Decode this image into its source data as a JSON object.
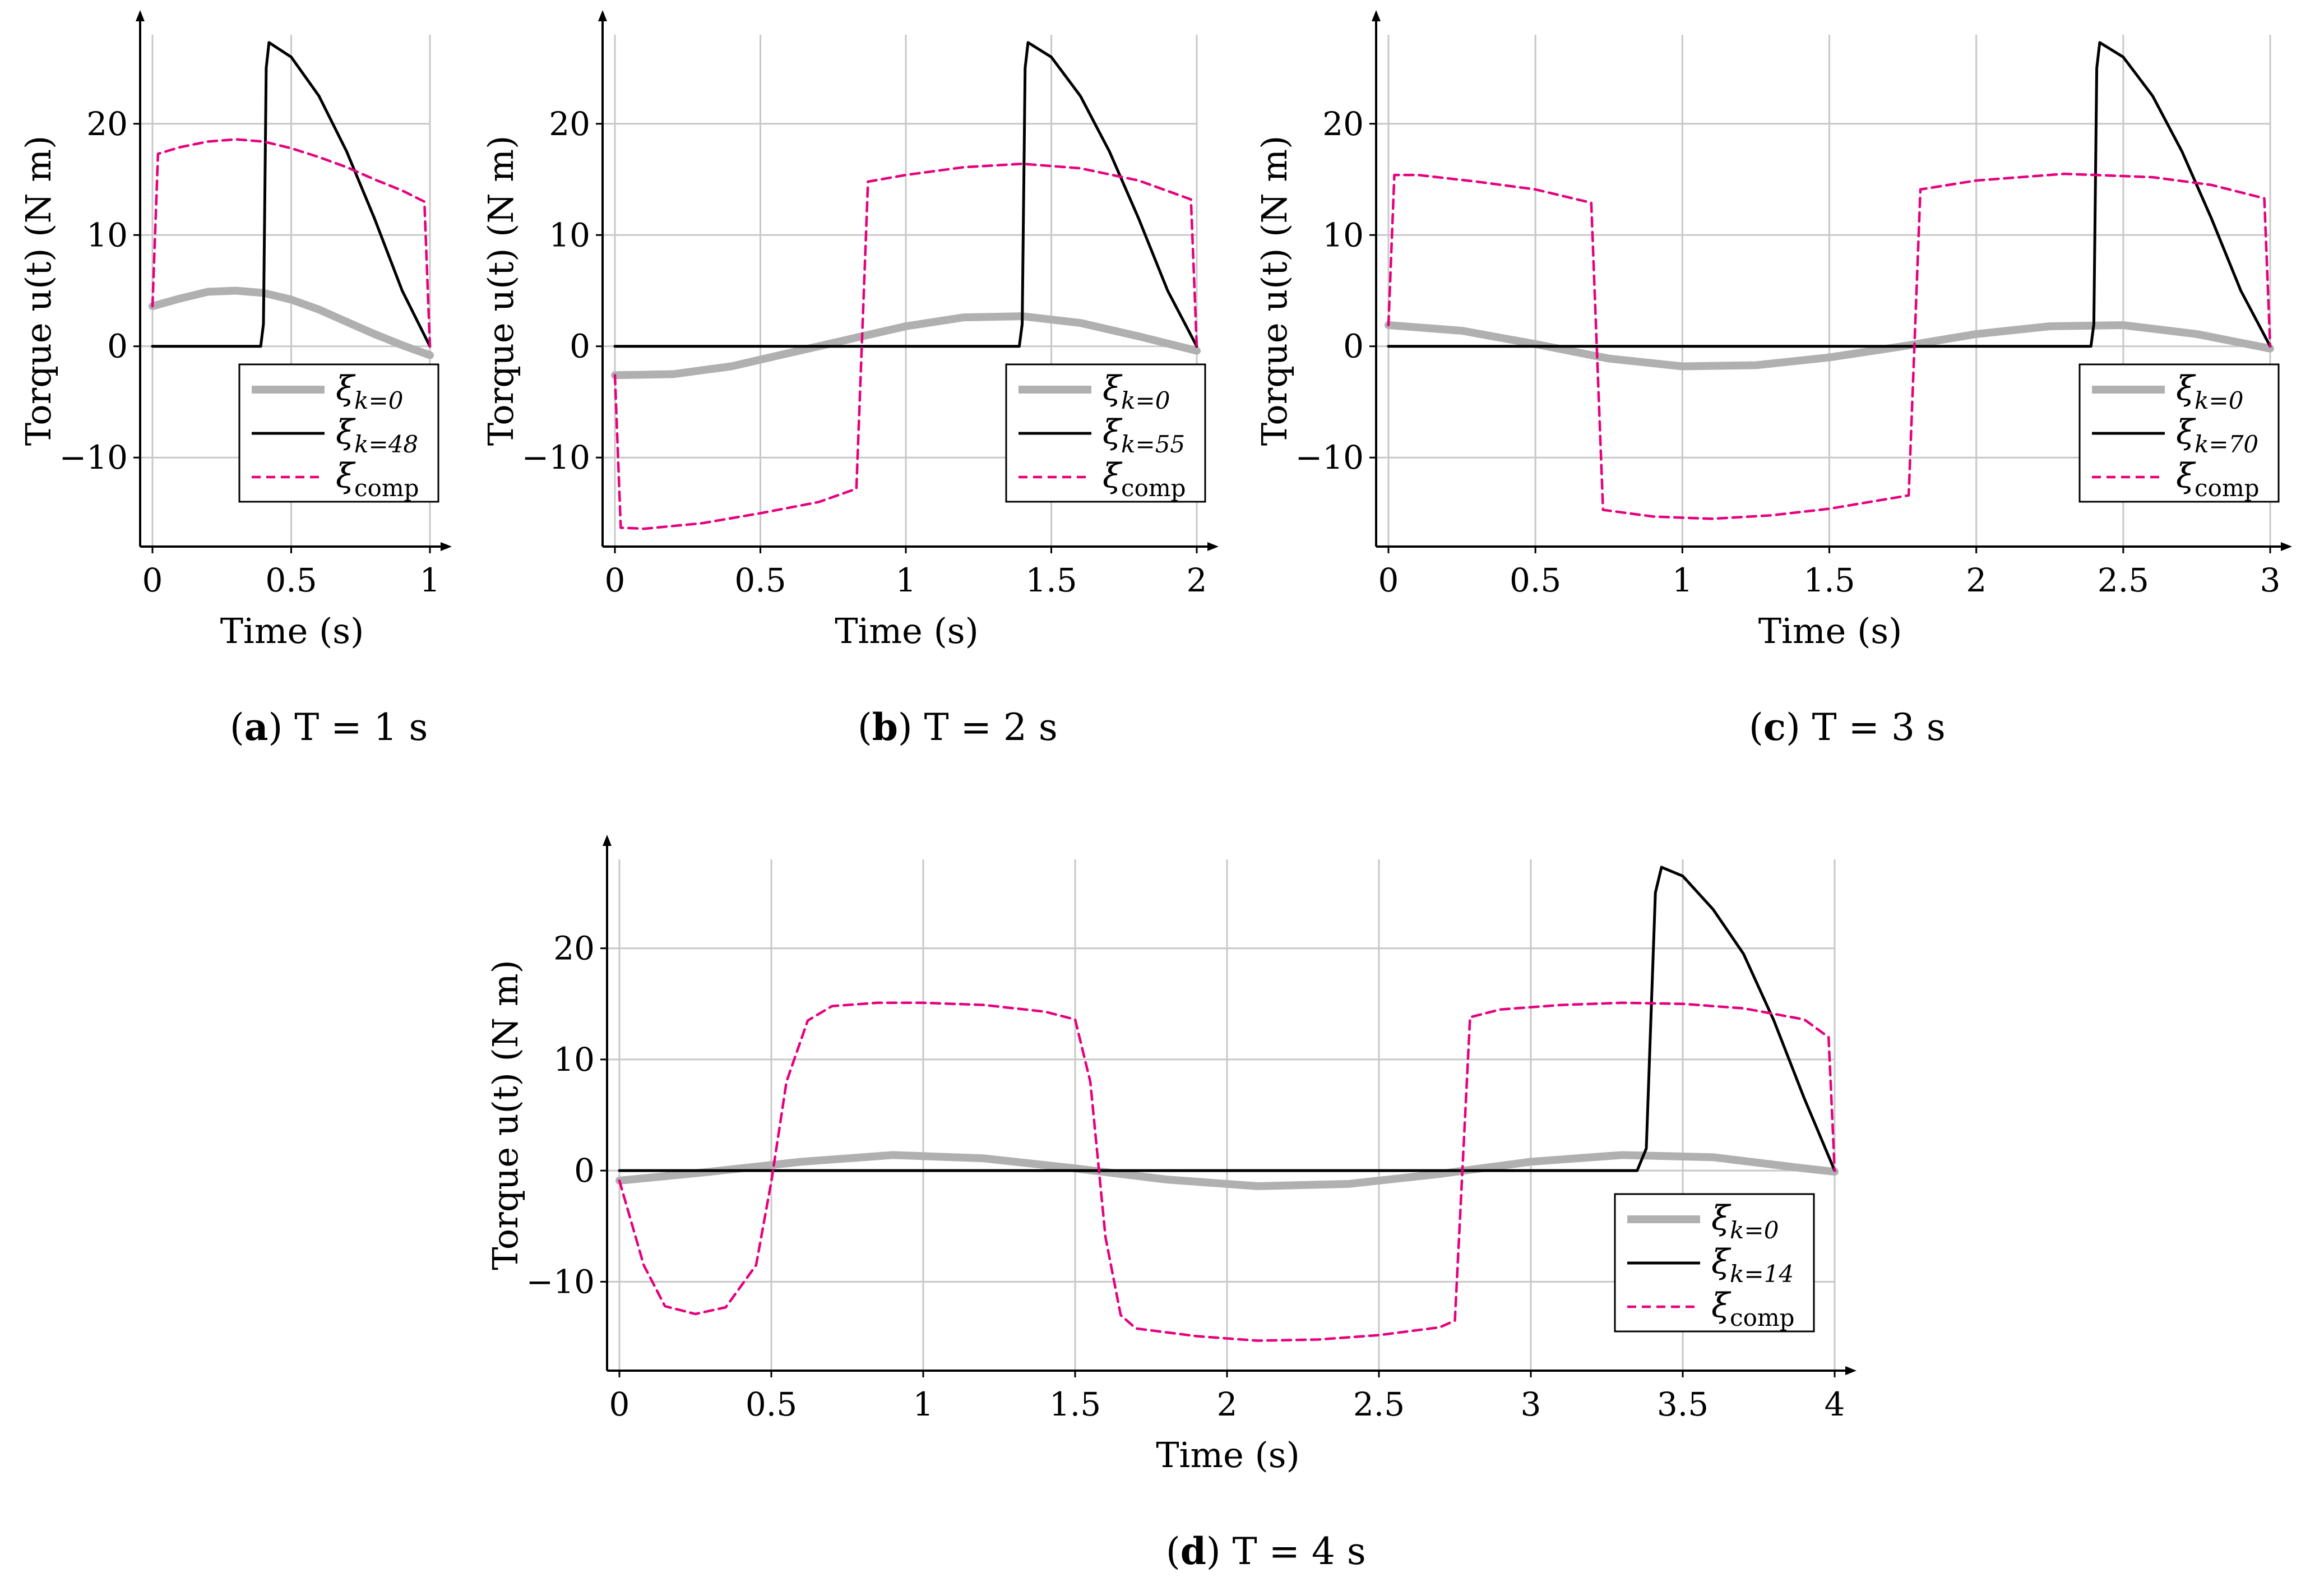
{
  "colors": {
    "zero": "#b0b0b0",
    "opt": "#000000",
    "comp": "#e6007e",
    "grid": "#c8c8c8"
  },
  "chart_data": [
    {
      "id": "a",
      "type": "line",
      "period": 1,
      "caption": {
        "letter": "a",
        "expr": "T = 1 s"
      },
      "xlabel": "Time (s)",
      "ylabel": "Torque u(t) (N m)",
      "xlim": [
        0,
        1
      ],
      "ylim": [
        -18,
        28
      ],
      "xticks": [
        0,
        0.5,
        1
      ],
      "xticklabels": [
        "0",
        "0.5",
        "1"
      ],
      "yticks": [
        -10,
        0,
        10,
        20
      ],
      "yticklabels": [
        "−10",
        "0",
        "10",
        "20"
      ],
      "series": [
        {
          "name": "ξ_{k=0}",
          "label_main": "ξ",
          "label_sub": "k=0",
          "style": "zero",
          "x": [
            0,
            0.1,
            0.2,
            0.3,
            0.4,
            0.5,
            0.6,
            0.7,
            0.8,
            0.9,
            1.0
          ],
          "y": [
            3.6,
            4.3,
            4.9,
            5.0,
            4.8,
            4.2,
            3.3,
            2.2,
            1.1,
            0.1,
            -0.8
          ]
        },
        {
          "name": "ξ_{k=48}",
          "label_main": "ξ",
          "label_sub": "k=48",
          "style": "opt",
          "x": [
            0,
            0.39,
            0.4,
            0.41,
            0.42,
            0.5,
            0.6,
            0.7,
            0.8,
            0.9,
            1.0
          ],
          "y": [
            0,
            0,
            2,
            25,
            27.3,
            26,
            22.5,
            17.5,
            11.5,
            5,
            0
          ]
        },
        {
          "name": "ξ_comp",
          "label_main": "ξ",
          "label_sub": "comp",
          "style": "comp",
          "x": [
            0,
            0.02,
            0.1,
            0.2,
            0.3,
            0.4,
            0.5,
            0.6,
            0.7,
            0.8,
            0.9,
            0.98,
            1.0
          ],
          "y": [
            3.6,
            17.3,
            17.9,
            18.4,
            18.6,
            18.4,
            17.8,
            17.0,
            16.1,
            15.0,
            14.0,
            13.0,
            0
          ]
        }
      ]
    },
    {
      "id": "b",
      "type": "line",
      "period": 2,
      "caption": {
        "letter": "b",
        "expr": "T = 2 s"
      },
      "xlabel": "Time (s)",
      "ylabel": "Torque u(t) (N m)",
      "xlim": [
        0,
        2
      ],
      "ylim": [
        -18,
        28
      ],
      "xticks": [
        0,
        0.5,
        1,
        1.5,
        2
      ],
      "xticklabels": [
        "0",
        "0.5",
        "1",
        "1.5",
        "2"
      ],
      "yticks": [
        -10,
        0,
        10,
        20
      ],
      "yticklabels": [
        "−10",
        "0",
        "10",
        "20"
      ],
      "series": [
        {
          "name": "ξ_{k=0}",
          "label_main": "ξ",
          "label_sub": "k=0",
          "style": "zero",
          "x": [
            0,
            0.2,
            0.4,
            0.6,
            0.8,
            1.0,
            1.2,
            1.4,
            1.6,
            1.8,
            2.0
          ],
          "y": [
            -2.6,
            -2.5,
            -1.8,
            -0.6,
            0.6,
            1.8,
            2.6,
            2.7,
            2.1,
            0.9,
            -0.4
          ]
        },
        {
          "name": "ξ_{k=55}",
          "label_main": "ξ",
          "label_sub": "k=55",
          "style": "opt",
          "x": [
            0,
            1.39,
            1.4,
            1.41,
            1.42,
            1.5,
            1.6,
            1.7,
            1.8,
            1.9,
            2.0
          ],
          "y": [
            0,
            0,
            2,
            25,
            27.3,
            26,
            22.5,
            17.5,
            11.5,
            5,
            0
          ]
        },
        {
          "name": "ξ_comp",
          "label_main": "ξ",
          "label_sub": "comp",
          "style": "comp",
          "x": [
            0,
            0.02,
            0.1,
            0.3,
            0.5,
            0.7,
            0.83,
            0.87,
            1.0,
            1.2,
            1.4,
            1.6,
            1.8,
            1.98,
            2.0
          ],
          "y": [
            -2.6,
            -16.3,
            -16.4,
            -15.9,
            -15.0,
            -14.0,
            -12.8,
            14.8,
            15.4,
            16.1,
            16.4,
            16.0,
            14.9,
            13.2,
            0
          ]
        }
      ]
    },
    {
      "id": "c",
      "type": "line",
      "period": 3,
      "caption": {
        "letter": "c",
        "expr": "T = 3 s"
      },
      "xlabel": "Time (s)",
      "ylabel": "Torque u(t) (N m)",
      "xlim": [
        0,
        3
      ],
      "ylim": [
        -18,
        28
      ],
      "xticks": [
        0,
        0.5,
        1,
        1.5,
        2,
        2.5,
        3
      ],
      "xticklabels": [
        "0",
        "0.5",
        "1",
        "1.5",
        "2",
        "2.5",
        "3"
      ],
      "yticks": [
        -10,
        0,
        10,
        20
      ],
      "yticklabels": [
        "−10",
        "0",
        "10",
        "20"
      ],
      "series": [
        {
          "name": "ξ_{k=0}",
          "label_main": "ξ",
          "label_sub": "k=0",
          "style": "zero",
          "x": [
            0,
            0.25,
            0.5,
            0.75,
            1.0,
            1.25,
            1.5,
            1.75,
            2.0,
            2.25,
            2.5,
            2.75,
            3.0
          ],
          "y": [
            1.9,
            1.4,
            0.2,
            -1.1,
            -1.8,
            -1.7,
            -1.0,
            0.0,
            1.1,
            1.8,
            1.9,
            1.1,
            -0.2
          ]
        },
        {
          "name": "ξ_{k=70}",
          "label_main": "ξ",
          "label_sub": "k=70",
          "style": "opt",
          "x": [
            0,
            2.39,
            2.4,
            2.41,
            2.42,
            2.5,
            2.6,
            2.7,
            2.8,
            2.9,
            3.0
          ],
          "y": [
            0,
            0,
            2,
            25,
            27.3,
            26,
            22.5,
            17.5,
            11.5,
            5,
            0
          ]
        },
        {
          "name": "ξ_comp",
          "label_main": "ξ",
          "label_sub": "comp",
          "style": "comp",
          "x": [
            0,
            0.02,
            0.1,
            0.3,
            0.5,
            0.69,
            0.73,
            0.9,
            1.1,
            1.3,
            1.5,
            1.77,
            1.81,
            2.0,
            2.3,
            2.6,
            2.8,
            2.98,
            3.0
          ],
          "y": [
            1.9,
            15.4,
            15.4,
            14.8,
            14.1,
            12.9,
            -14.7,
            -15.3,
            -15.5,
            -15.2,
            -14.6,
            -13.4,
            14.1,
            14.9,
            15.5,
            15.2,
            14.5,
            13.3,
            0
          ]
        }
      ]
    },
    {
      "id": "d",
      "type": "line",
      "period": 4,
      "caption": {
        "letter": "d",
        "expr": "T = 4 s"
      },
      "xlabel": "Time (s)",
      "ylabel": "Torque u(t) (N m)",
      "xlim": [
        0,
        4
      ],
      "ylim": [
        -18,
        28
      ],
      "xticks": [
        0,
        0.5,
        1,
        1.5,
        2,
        2.5,
        3,
        3.5,
        4
      ],
      "xticklabels": [
        "0",
        "0.5",
        "1",
        "1.5",
        "2",
        "2.5",
        "3",
        "3.5",
        "4"
      ],
      "yticks": [
        -10,
        0,
        10,
        20
      ],
      "yticklabels": [
        "−10",
        "0",
        "10",
        "20"
      ],
      "series": [
        {
          "name": "ξ_{k=0}",
          "label_main": "ξ",
          "label_sub": "k=0",
          "style": "zero",
          "x": [
            0,
            0.3,
            0.6,
            0.9,
            1.2,
            1.5,
            1.8,
            2.1,
            2.4,
            2.7,
            3.0,
            3.3,
            3.6,
            3.9,
            4.0
          ],
          "y": [
            -0.9,
            -0.1,
            0.8,
            1.4,
            1.1,
            0.2,
            -0.8,
            -1.4,
            -1.2,
            -0.3,
            0.8,
            1.4,
            1.2,
            0.2,
            -0.1
          ]
        },
        {
          "name": "ξ_{k=14}",
          "label_main": "ξ",
          "label_sub": "k=14",
          "style": "opt",
          "x": [
            0,
            3.35,
            3.38,
            3.41,
            3.43,
            3.5,
            3.6,
            3.7,
            3.8,
            3.9,
            4.0
          ],
          "y": [
            0,
            0,
            2,
            25,
            27.3,
            26.5,
            23.5,
            19.5,
            13.5,
            6.5,
            0
          ]
        },
        {
          "name": "ξ_comp",
          "label_main": "ξ",
          "label_sub": "comp",
          "style": "comp",
          "x": [
            0,
            0.08,
            0.15,
            0.25,
            0.35,
            0.45,
            0.5,
            0.55,
            0.62,
            0.7,
            0.85,
            1.0,
            1.2,
            1.4,
            1.5,
            1.55,
            1.6,
            1.65,
            1.7,
            1.9,
            2.1,
            2.3,
            2.5,
            2.7,
            2.75,
            2.8,
            2.9,
            3.1,
            3.3,
            3.5,
            3.7,
            3.9,
            3.98,
            4.0
          ],
          "y": [
            -0.9,
            -8.5,
            -12.2,
            -12.9,
            -12.3,
            -8.5,
            -1,
            8,
            13.5,
            14.8,
            15.1,
            15.1,
            14.9,
            14.3,
            13.6,
            8,
            -6,
            -13.0,
            -14.2,
            -14.9,
            -15.3,
            -15.2,
            -14.8,
            -14.1,
            -13.5,
            13.8,
            14.5,
            14.9,
            15.1,
            15.0,
            14.6,
            13.6,
            12,
            0
          ]
        }
      ]
    }
  ]
}
